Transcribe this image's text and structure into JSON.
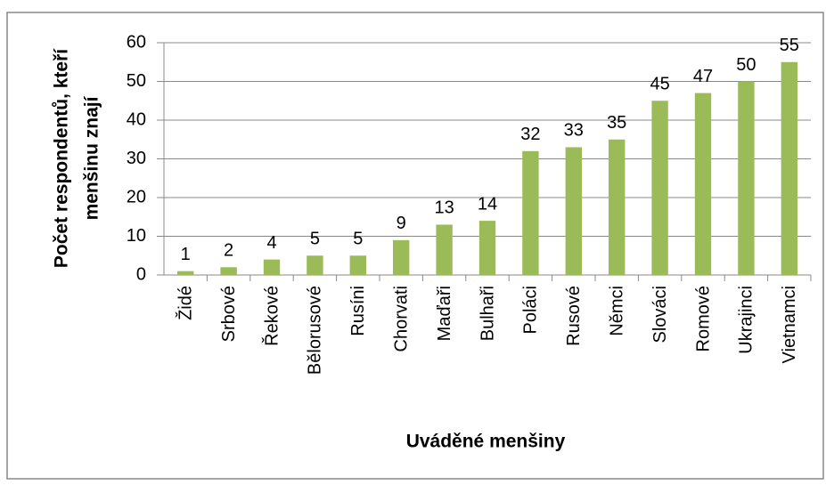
{
  "chart_data": {
    "type": "bar",
    "ylabel": [
      "Počet respondentů, kteří",
      "menšinu znají"
    ],
    "xlabel": "Uváděné menšiny",
    "categories": [
      "Židé",
      "Srbové",
      "Řekové",
      "Bělorusové",
      "Rusíni",
      "Chorvati",
      "Maďaři",
      "Bulhaři",
      "Poláci",
      "Rusové",
      "Němci",
      "Slováci",
      "Romové",
      "Ukrajinci",
      "Vietnamci"
    ],
    "values": [
      1,
      2,
      4,
      5,
      5,
      9,
      13,
      14,
      32,
      33,
      35,
      45,
      47,
      50,
      55
    ],
    "color": "#9bbb59",
    "ylim": [
      0,
      60
    ],
    "yticks": [
      0,
      10,
      20,
      30,
      40,
      50,
      60
    ],
    "grid": true
  }
}
